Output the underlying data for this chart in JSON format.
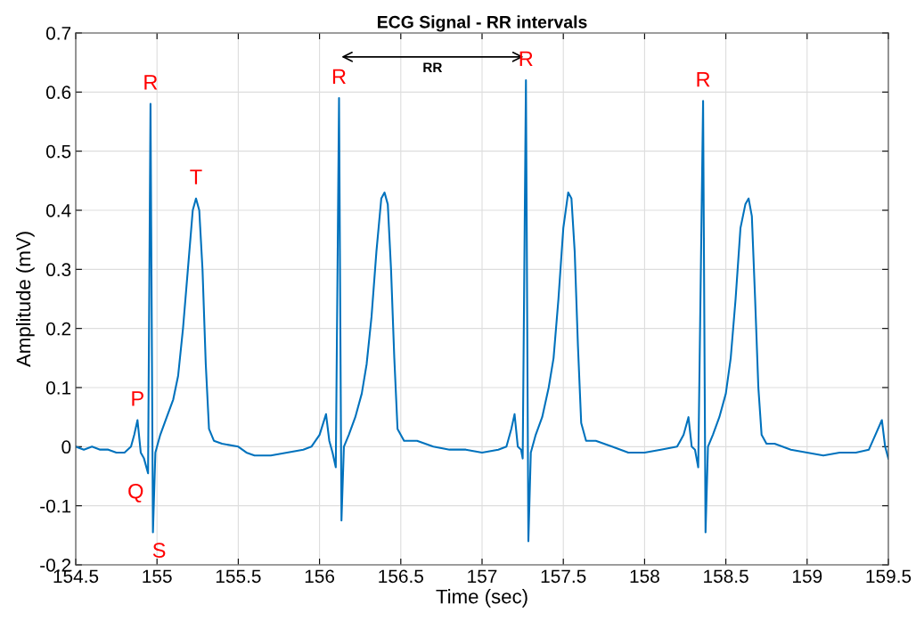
{
  "chart_data": {
    "type": "line",
    "title": "ECG Signal - RR intervals",
    "xlabel": "Time (sec)",
    "ylabel": "Amplitude (mV)",
    "x": [
      154.5,
      154.55,
      154.6,
      154.65,
      154.7,
      154.75,
      154.8,
      154.84,
      154.86,
      154.88,
      154.9,
      154.92,
      154.945,
      154.96,
      154.975,
      154.99,
      155.02,
      155.06,
      155.1,
      155.13,
      155.16,
      155.19,
      155.22,
      155.24,
      155.26,
      155.28,
      155.3,
      155.32,
      155.35,
      155.4,
      155.5,
      155.55,
      155.6,
      155.7,
      155.8,
      155.9,
      155.95,
      156.0,
      156.04,
      156.06,
      156.08,
      156.1,
      156.12,
      156.135,
      156.15,
      156.18,
      156.22,
      156.26,
      156.29,
      156.32,
      156.35,
      156.38,
      156.4,
      156.42,
      156.44,
      156.46,
      156.48,
      156.52,
      156.6,
      156.7,
      156.8,
      156.9,
      157.0,
      157.1,
      157.15,
      157.18,
      157.2,
      157.22,
      157.24,
      157.25,
      157.27,
      157.285,
      157.3,
      157.33,
      157.37,
      157.41,
      157.44,
      157.47,
      157.5,
      157.53,
      157.55,
      157.57,
      157.59,
      157.61,
      157.64,
      157.7,
      157.8,
      157.9,
      158.0,
      158.1,
      158.2,
      158.24,
      158.27,
      158.29,
      158.31,
      158.33,
      158.36,
      158.375,
      158.39,
      158.42,
      158.46,
      158.5,
      158.53,
      158.56,
      158.59,
      158.62,
      158.64,
      158.66,
      158.68,
      158.7,
      158.72,
      158.75,
      158.8,
      158.9,
      159.0,
      159.1,
      159.2,
      159.3,
      159.38,
      159.42,
      159.46,
      159.48,
      159.5
    ],
    "series": [
      {
        "color": "#0072bd",
        "values": [
          0.0,
          -0.005,
          0.0,
          -0.005,
          -0.005,
          -0.01,
          -0.01,
          0.0,
          0.02,
          0.045,
          -0.01,
          -0.02,
          -0.045,
          0.58,
          -0.145,
          -0.01,
          0.02,
          0.05,
          0.08,
          0.12,
          0.2,
          0.3,
          0.4,
          0.42,
          0.4,
          0.3,
          0.14,
          0.03,
          0.01,
          0.005,
          0.0,
          -0.01,
          -0.015,
          -0.015,
          -0.01,
          -0.005,
          0.0,
          0.02,
          0.055,
          0.01,
          -0.01,
          -0.035,
          0.59,
          -0.125,
          0.0,
          0.02,
          0.05,
          0.09,
          0.14,
          0.22,
          0.33,
          0.42,
          0.43,
          0.41,
          0.3,
          0.15,
          0.03,
          0.01,
          0.01,
          0.0,
          -0.005,
          -0.005,
          -0.01,
          -0.005,
          0.0,
          0.03,
          0.055,
          0.0,
          -0.005,
          -0.02,
          0.62,
          -0.16,
          -0.01,
          0.02,
          0.05,
          0.1,
          0.15,
          0.25,
          0.37,
          0.43,
          0.42,
          0.33,
          0.17,
          0.04,
          0.01,
          0.01,
          0.0,
          -0.01,
          -0.01,
          -0.005,
          0.0,
          0.02,
          0.05,
          0.0,
          -0.005,
          -0.035,
          0.585,
          -0.145,
          0.0,
          0.02,
          0.05,
          0.09,
          0.15,
          0.25,
          0.37,
          0.41,
          0.42,
          0.39,
          0.25,
          0.1,
          0.02,
          0.005,
          0.005,
          -0.005,
          -0.01,
          -0.015,
          -0.01,
          -0.01,
          -0.005,
          0.02,
          0.045,
          0.0,
          -0.02
        ]
      }
    ],
    "xlim": [
      154.5,
      159.5
    ],
    "xticks": [
      154.5,
      155,
      155.5,
      156,
      156.5,
      157,
      157.5,
      158,
      158.5,
      159,
      159.5
    ],
    "ylim": [
      -0.2,
      0.7
    ],
    "yticks": [
      -0.2,
      -0.1,
      0,
      0.1,
      0.2,
      0.3,
      0.4,
      0.5,
      0.6,
      0.7
    ],
    "grid": true,
    "annotations": [
      {
        "text": "R",
        "x": 154.96,
        "y": 0.58
      },
      {
        "text": "R",
        "x": 156.12,
        "y": 0.59
      },
      "RR",
      {
        "text": "R",
        "x": 157.27,
        "y": 0.62
      },
      {
        "text": "R",
        "x": 158.36,
        "y": 0.585
      },
      {
        "text": "P",
        "x": 154.88,
        "y": 0.045
      },
      {
        "text": "Q",
        "x": 154.945,
        "y": -0.045
      },
      {
        "text": "S",
        "x": 154.975,
        "y": -0.145
      },
      {
        "text": "T",
        "x": 155.24,
        "y": 0.42
      }
    ]
  }
}
